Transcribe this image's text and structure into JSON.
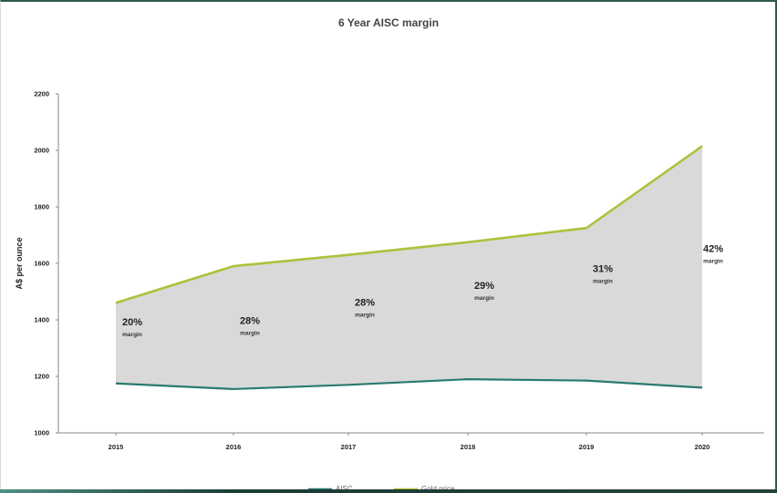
{
  "chart_data": {
    "type": "area",
    "title": "6 Year AISC margin",
    "xlabel": "",
    "ylabel": "A$ per ounce",
    "categories": [
      "2015",
      "2016",
      "2017",
      "2018",
      "2019",
      "2020"
    ],
    "ylim": [
      1000,
      2200
    ],
    "yticks": [
      "1000",
      "1200",
      "1400",
      "1600",
      "1800",
      "2000",
      "2200"
    ],
    "series": [
      {
        "name": "AISC",
        "color": "#2a7a6f",
        "values": [
          1175,
          1155,
          1170,
          1190,
          1185,
          1160
        ]
      },
      {
        "name": "Gold price",
        "color": "#a8c43a",
        "values": [
          1460,
          1590,
          1630,
          1675,
          1725,
          2015
        ]
      }
    ],
    "margin_fill": "#d9d9d9",
    "annotations": [
      {
        "category": "2015",
        "percent": "20%",
        "label": "margin",
        "y": 1380
      },
      {
        "category": "2016",
        "percent": "28%",
        "label": "margin",
        "y": 1385
      },
      {
        "category": "2017",
        "percent": "28%",
        "label": "margin",
        "y": 1450
      },
      {
        "category": "2018",
        "percent": "29%",
        "label": "margin",
        "y": 1510
      },
      {
        "category": "2019",
        "percent": "31%",
        "label": "margin",
        "y": 1570
      },
      {
        "category": "2020",
        "percent": "42%",
        "label": "margin",
        "y": 1640
      }
    ],
    "legend": {
      "position": "bottom",
      "entries": [
        "AISC",
        "Gold price"
      ]
    },
    "grid": false
  }
}
